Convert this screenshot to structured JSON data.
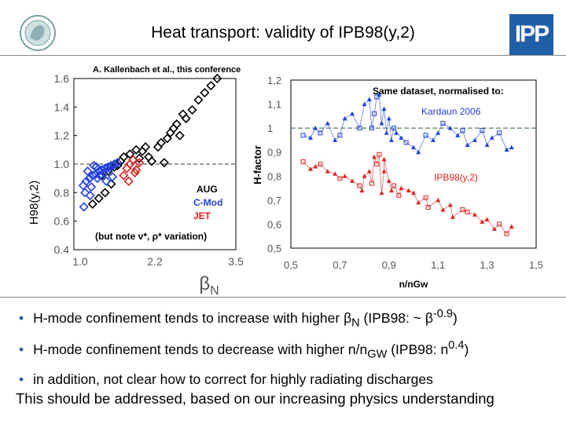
{
  "slide": {
    "title": "Heat transport: validity of IPB98(y,2)",
    "logo_right_text": "IPP",
    "bullets": [
      {
        "text": "H-mode confinement tends to increase with higher β",
        "sub": "N",
        "tail": " (IPB98: ~ β",
        "sup": "-0.9",
        "end": ")"
      },
      {
        "text": "H-mode confinement tends to decrease with higher n/n",
        "sub": "GW",
        "tail": " (IPB98: n",
        "sup": "0.4",
        "end": ")"
      },
      {
        "text": "in addition, not clear how to correct for highly radiating discharges",
        "sub": "",
        "tail": "",
        "sup": "",
        "end": ""
      }
    ],
    "footer": "This should be addressed, based on our increasing physics understanding",
    "colors": {
      "bullet": "#2e58a8",
      "blue": "#2040e0",
      "red": "#e02020",
      "ipp_blue": "#1f5fa8"
    }
  },
  "chart_data": [
    {
      "type": "scatter",
      "title": "A. Kallenbach et al., this conference",
      "xlabel": "β",
      "xlabel_sub": "N",
      "ylabel": "H98(y,2)",
      "xlim": [
        0.9,
        3.5
      ],
      "ylim": [
        0.4,
        1.6
      ],
      "x_ticks": [
        "1.0",
        "2.2",
        "3.5"
      ],
      "y_ticks": [
        "0.4",
        "0.6",
        "0.8",
        "1.0",
        "1.2",
        "1.4",
        "1.6"
      ],
      "reference_line": 1.0,
      "annotation": "(but note ν*, ρ* variation)",
      "series": [
        {
          "name": "AUG",
          "color": "#000000",
          "x": [
            1.2,
            1.3,
            1.4,
            1.5,
            1.35,
            1.45,
            1.55,
            1.6,
            1.65,
            1.7,
            1.8,
            1.9,
            2.0,
            2.1,
            2.15,
            2.25,
            2.3,
            2.4,
            2.45,
            2.5,
            2.55,
            2.6,
            2.7,
            2.8,
            2.9,
            3.0,
            3.1,
            3.2,
            2.35,
            2.05,
            1.95,
            2.65
          ],
          "y": [
            0.72,
            0.76,
            0.8,
            0.86,
            0.92,
            0.95,
            0.98,
            0.99,
            1.02,
            1.05,
            1.07,
            1.1,
            1.09,
            1.05,
            1.02,
            1.12,
            1.15,
            1.18,
            1.22,
            1.25,
            1.28,
            1.2,
            1.32,
            1.38,
            1.45,
            1.5,
            1.55,
            1.6,
            1.01,
            1.12,
            1.04,
            1.35
          ]
        },
        {
          "name": "C-Mod",
          "color": "#2040e0",
          "x": [
            1.05,
            1.1,
            1.15,
            1.2,
            1.25,
            1.3,
            1.35,
            1.4,
            1.45,
            1.5,
            1.55,
            1.6,
            1.08,
            1.18,
            1.28,
            1.38,
            1.48,
            1.12,
            1.22,
            1.32,
            1.42,
            1.52,
            1.06,
            1.16,
            1.26
          ],
          "y": [
            0.85,
            0.88,
            0.9,
            0.92,
            0.93,
            0.95,
            0.96,
            0.97,
            0.98,
            0.99,
            1.0,
            1.01,
            0.8,
            0.84,
            0.9,
            0.94,
            0.97,
            0.95,
            0.99,
            0.92,
            0.88,
            0.91,
            0.7,
            0.78,
            0.98
          ]
        },
        {
          "name": "JET",
          "color": "#e02020",
          "x": [
            1.7,
            1.75,
            1.8,
            1.85,
            1.9,
            1.78,
            1.88,
            1.95
          ],
          "y": [
            0.92,
            0.97,
            1.0,
            1.03,
            0.96,
            0.88,
            0.94,
            1.01
          ]
        }
      ]
    },
    {
      "type": "scatter",
      "title": "Same dataset, normalised to:",
      "xlabel": "n/nGw",
      "ylabel": "H-factor",
      "xlim": [
        0.5,
        1.5
      ],
      "ylim": [
        0.5,
        1.2
      ],
      "x_ticks": [
        "0,5",
        "0,7",
        "0,9",
        "1,1",
        "1,3",
        "1,5"
      ],
      "y_ticks": [
        "0,5",
        "0,6",
        "0,7",
        "0,8",
        "0,9",
        "1",
        "1,1",
        "1,2"
      ],
      "reference_line": 1.0,
      "series": [
        {
          "name": "Kardaun 2006",
          "color": "#2040e0",
          "x": [
            0.55,
            0.58,
            0.6,
            0.62,
            0.65,
            0.68,
            0.7,
            0.72,
            0.75,
            0.78,
            0.8,
            0.82,
            0.85,
            0.88,
            0.9,
            0.92,
            0.95,
            1.0,
            1.05,
            1.1,
            1.15,
            1.2,
            1.25,
            1.3,
            1.35,
            1.4,
            0.86,
            0.84,
            0.87,
            0.89,
            0.83,
            0.91,
            0.93,
            0.97,
            1.02,
            1.08,
            1.12,
            1.18,
            1.22,
            1.28,
            1.32,
            1.38
          ],
          "y": [
            0.97,
            0.96,
            1.0,
            0.98,
            1.02,
            0.95,
            0.97,
            1.04,
            1.06,
            1.0,
            1.1,
            1.12,
            1.13,
            1.08,
            1.04,
            1.0,
            0.96,
            0.92,
            0.97,
            0.98,
            1.0,
            0.99,
            0.95,
            0.93,
            0.98,
            0.92,
            1.14,
            1.06,
            1.02,
            0.98,
            1.0,
            0.95,
            0.98,
            0.94,
            0.9,
            0.95,
            1.02,
            0.97,
            0.93,
            0.99,
            0.96,
            0.91
          ]
        },
        {
          "name": "IPB98(y,2)",
          "color": "#e02020",
          "x": [
            0.55,
            0.58,
            0.6,
            0.62,
            0.65,
            0.68,
            0.7,
            0.72,
            0.75,
            0.78,
            0.8,
            0.82,
            0.85,
            0.88,
            0.9,
            0.92,
            0.95,
            1.0,
            1.05,
            1.1,
            1.15,
            1.2,
            1.25,
            1.3,
            1.35,
            1.4,
            0.84,
            0.86,
            0.88,
            0.79,
            0.83,
            0.87,
            0.91,
            0.94,
            0.98,
            1.02,
            1.06,
            1.12,
            1.16,
            1.22,
            1.28,
            1.33,
            1.38
          ],
          "y": [
            0.86,
            0.83,
            0.84,
            0.85,
            0.82,
            0.81,
            0.79,
            0.8,
            0.78,
            0.76,
            0.8,
            0.82,
            0.85,
            0.82,
            0.78,
            0.76,
            0.75,
            0.73,
            0.71,
            0.7,
            0.68,
            0.66,
            0.64,
            0.62,
            0.6,
            0.59,
            0.88,
            0.89,
            0.87,
            0.74,
            0.77,
            0.73,
            0.74,
            0.72,
            0.74,
            0.69,
            0.67,
            0.66,
            0.63,
            0.65,
            0.61,
            0.58,
            0.56
          ]
        }
      ]
    }
  ]
}
